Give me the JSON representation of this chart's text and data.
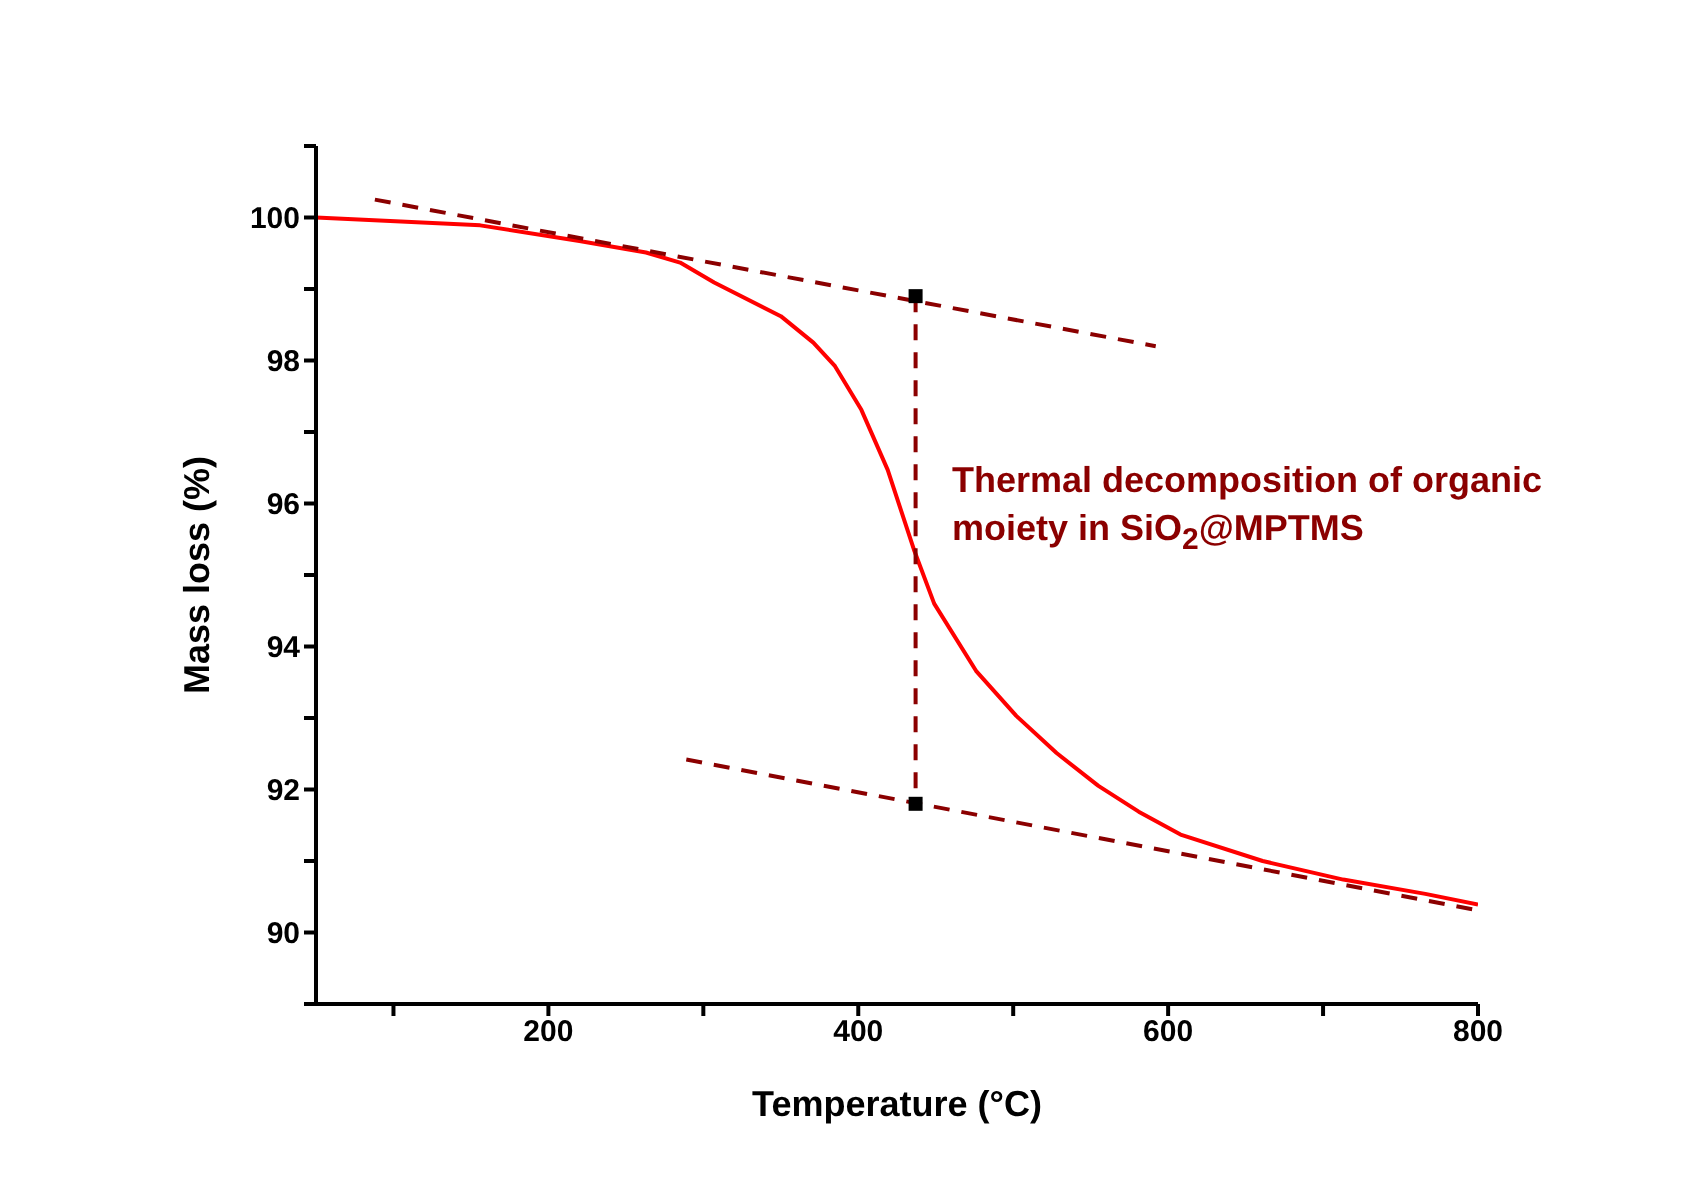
{
  "chart_data": {
    "type": "line",
    "xlabel": "Temperature (°C)",
    "ylabel": "Mass loss (%)",
    "xlim": [
      50,
      800
    ],
    "ylim": [
      89,
      101
    ],
    "xticks": [
      {
        "value": 100,
        "label": null
      },
      200,
      {
        "value": 300,
        "label": null
      },
      400,
      {
        "value": 500,
        "label": null
      },
      600,
      {
        "value": 700,
        "label": null
      },
      800
    ],
    "yticks": [
      {
        "value": 89,
        "label": null
      },
      90,
      {
        "value": 91,
        "label": null
      },
      92,
      {
        "value": 93,
        "label": null
      },
      94,
      {
        "value": 95,
        "label": null
      },
      96,
      {
        "value": 97,
        "label": null
      },
      98,
      {
        "value": 99,
        "label": null
      },
      100,
      {
        "value": 101,
        "label": null
      }
    ],
    "grid": false,
    "marker": "none",
    "annotations": [
      "Thermal decomposition of organic moiety in SiO$_{2}$@MPTMS"
    ],
    "series": [
      {
        "color": "#ff0000",
        "line_style": "solid",
        "x": [
          50,
          156,
          220,
          263,
          285,
          307,
          350,
          371,
          385,
          402,
          419,
          436,
          449,
          476,
          502,
          528,
          555,
          581,
          608,
          661,
          713,
          766,
          800
        ],
        "values": [
          100,
          99.89,
          99.67,
          99.51,
          99.37,
          99.09,
          98.62,
          98.25,
          97.92,
          97.31,
          96.47,
          95.35,
          94.6,
          93.66,
          93.03,
          92.51,
          92.05,
          91.69,
          91.37,
          91.0,
          90.74,
          90.54,
          90.39
        ]
      },
      {
        "color": "#8b0000",
        "line_style": "dashed",
        "x": [
          88,
          592
        ],
        "values": [
          100.25,
          98.2
        ]
      },
      {
        "color": "#8b0000",
        "line_style": "dashed",
        "x": [
          289,
          800
        ],
        "values": [
          92.42,
          90.31
        ]
      },
      {
        "color": "#8b0000",
        "line_style": "dashed",
        "x": [
          437,
          437
        ],
        "values": [
          98.9,
          91.8
        ]
      },
      {
        "type": "scatter",
        "color": "#000000",
        "marker": "square",
        "x": [
          437,
          437
        ],
        "values": [
          98.9,
          91.8
        ]
      }
    ]
  }
}
